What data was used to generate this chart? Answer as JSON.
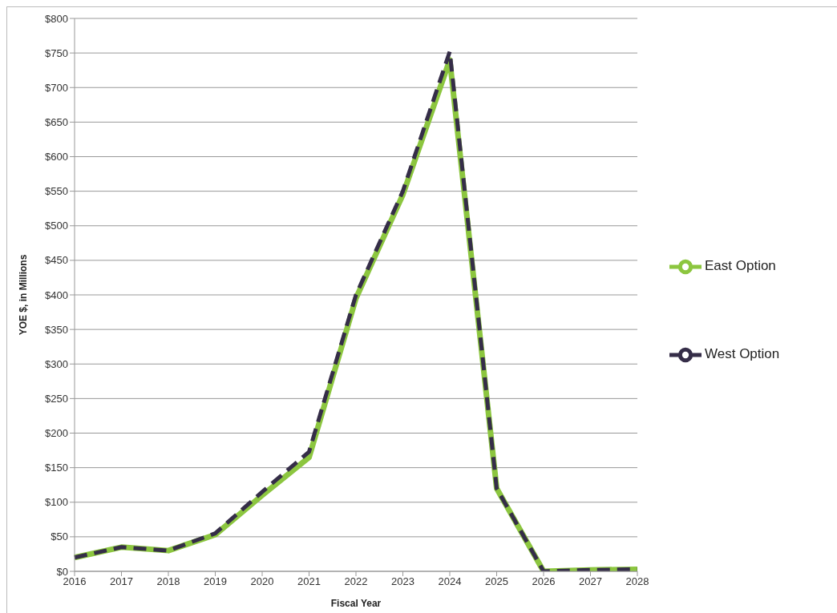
{
  "chart_data": {
    "type": "line",
    "xlabel": "Fiscal Year",
    "ylabel": "YOE $, in Millions",
    "categories": [
      "2016",
      "2017",
      "2018",
      "2019",
      "2020",
      "2021",
      "2022",
      "2023",
      "2024",
      "2025",
      "2026",
      "2027",
      "2028"
    ],
    "series": [
      {
        "name": "East Option",
        "color": "#8cc63f",
        "line_style": "solid",
        "values": [
          20,
          35,
          30,
          53,
          110,
          165,
          395,
          545,
          740,
          120,
          0,
          2,
          3
        ]
      },
      {
        "name": "West Option",
        "color": "#352d48",
        "line_style": "dashed",
        "values": [
          20,
          35,
          30,
          55,
          115,
          173,
          400,
          550,
          752,
          120,
          0,
          2,
          3
        ]
      }
    ],
    "ylim": [
      0,
      800
    ],
    "yticks": [
      {
        "value": 0,
        "label": "$0"
      },
      {
        "value": 50,
        "label": "$50"
      },
      {
        "value": 100,
        "label": "$100"
      },
      {
        "value": 150,
        "label": "$150"
      },
      {
        "value": 200,
        "label": "$200"
      },
      {
        "value": 250,
        "label": "$250"
      },
      {
        "value": 300,
        "label": "$300"
      },
      {
        "value": 350,
        "label": "$350"
      },
      {
        "value": 400,
        "label": "$400"
      },
      {
        "value": 450,
        "label": "$450"
      },
      {
        "value": 500,
        "label": "$500"
      },
      {
        "value": 550,
        "label": "$550"
      },
      {
        "value": 600,
        "label": "$600"
      },
      {
        "value": 650,
        "label": "$650"
      },
      {
        "value": 700,
        "label": "$700"
      },
      {
        "value": 750,
        "label": "$750"
      },
      {
        "value": 800,
        "label": "$800"
      }
    ],
    "grid": "y",
    "legend": "right",
    "marker": "none"
  }
}
